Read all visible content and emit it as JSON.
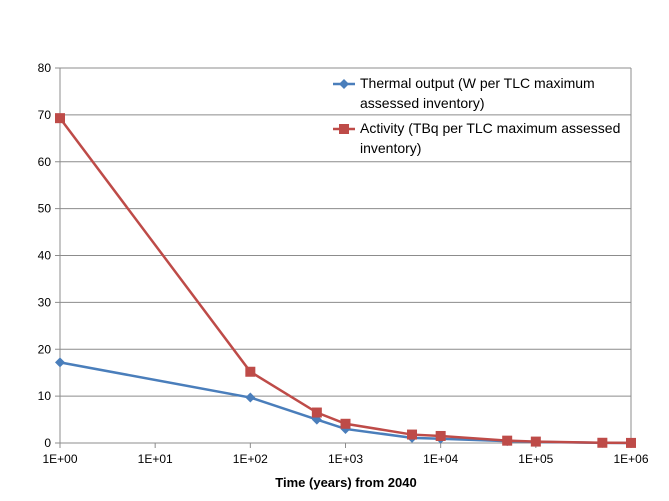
{
  "chart_data": {
    "type": "line",
    "title": "",
    "xlabel": "Time (years) from 2040",
    "ylabel": "",
    "xscale": "log",
    "xlim": [
      1,
      1000000
    ],
    "ylim": [
      0,
      80
    ],
    "yticks": [
      0,
      10,
      20,
      30,
      40,
      50,
      60,
      70,
      80
    ],
    "xticks": [
      "1E+00",
      "1E+01",
      "1E+02",
      "1E+03",
      "1E+04",
      "1E+05",
      "1E+06"
    ],
    "grid": "horizontal",
    "legend_placement": "top-right",
    "x": [
      1,
      100,
      500,
      1000,
      5000,
      10000,
      50000,
      100000,
      500000,
      1000000
    ],
    "series": [
      {
        "name": "Thermal output (W per TLC maximum assessed inventory)",
        "legend_lines": [
          "Thermal output (W per TLC maximum",
          "assessed inventory)"
        ],
        "color": "#4a7ebb",
        "marker": "diamond",
        "values": [
          17.2,
          9.7,
          5.0,
          3.0,
          1.1,
          0.9,
          0.4,
          0.25,
          0.03,
          0.01
        ]
      },
      {
        "name": "Activity (TBq per TLC maximum assessed inventory)",
        "legend_lines": [
          "Activity (TBq per TLC maximum assessed",
          "inventory)"
        ],
        "color": "#be4b48",
        "marker": "square",
        "values": [
          69.3,
          15.2,
          6.5,
          4.1,
          1.8,
          1.5,
          0.5,
          0.3,
          0.05,
          0.02
        ]
      }
    ]
  }
}
